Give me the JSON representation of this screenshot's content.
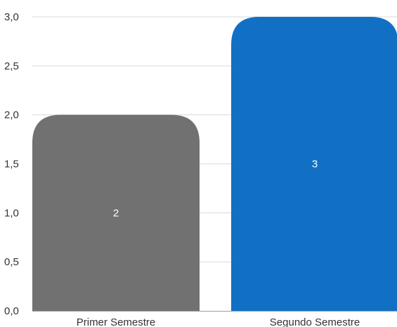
{
  "chart_data": {
    "type": "bar",
    "categories": [
      "Primer Semestre",
      "Segundo Semestre"
    ],
    "values": [
      2,
      3
    ],
    "data_labels": [
      "2",
      "3"
    ],
    "bar_colors": [
      "#717171",
      "#1270c4"
    ],
    "ylim": [
      0,
      3
    ],
    "y_ticks": [
      0,
      0.5,
      1.0,
      1.5,
      2.0,
      2.5,
      3.0
    ],
    "y_tick_labels": [
      "0,0",
      "0,5",
      "1,0",
      "1,5",
      "2,0",
      "2,5",
      "3,0"
    ],
    "grid": true,
    "legend": "none"
  }
}
